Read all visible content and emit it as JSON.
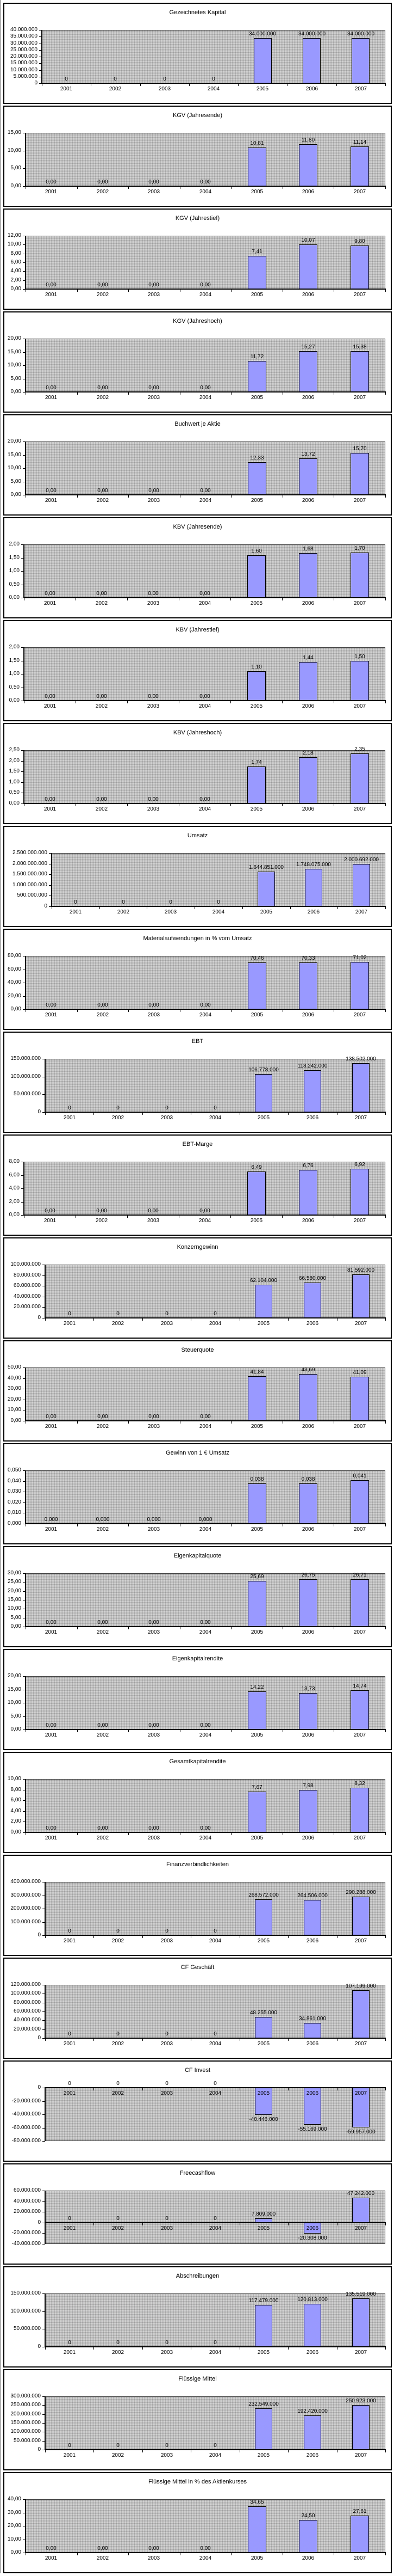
{
  "chart_defaults": {
    "categories": [
      "2001",
      "2002",
      "2003",
      "2004",
      "2005",
      "2006",
      "2007"
    ],
    "bar_color": "#9999ff",
    "bar_border_color": "#000000",
    "plot_background": "#cfcfcf",
    "box_border_color": "#000000",
    "legend": "none",
    "grid": "off"
  },
  "chart_data": [
    {
      "type": "bar",
      "title": "Gezeichnetes Kapital",
      "ymin": 0,
      "ymax": 40000000,
      "ytick_labels": [
        "0",
        "5.000.000",
        "10.000.000",
        "15.000.000",
        "20.000.000",
        "25.000.000",
        "30.000.000",
        "35.000.000",
        "40.000.000"
      ],
      "values": [
        0,
        0,
        0,
        0,
        34000000,
        34000000,
        34000000
      ],
      "value_labels": [
        "0",
        "0",
        "0",
        "0",
        "34.000.000",
        "34.000.000",
        "34.000.000"
      ]
    },
    {
      "type": "bar",
      "title": "KGV (Jahresende)",
      "ymin": 0,
      "ymax": 15,
      "ytick_labels": [
        "0,00",
        "5,00",
        "10,00",
        "15,00"
      ],
      "values": [
        0,
        0,
        0,
        0,
        10.81,
        11.8,
        11.14
      ],
      "value_labels": [
        "0,00",
        "0,00",
        "0,00",
        "0,00",
        "10,81",
        "11,80",
        "11,14"
      ]
    },
    {
      "type": "bar",
      "title": "KGV (Jahrestief)",
      "ymin": 0,
      "ymax": 12,
      "ytick_labels": [
        "0,00",
        "2,00",
        "4,00",
        "6,00",
        "8,00",
        "10,00",
        "12,00"
      ],
      "values": [
        0,
        0,
        0,
        0,
        7.41,
        10.07,
        9.8
      ],
      "value_labels": [
        "0,00",
        "0,00",
        "0,00",
        "0,00",
        "7,41",
        "10,07",
        "9,80"
      ]
    },
    {
      "type": "bar",
      "title": "KGV (Jahreshoch)",
      "ymin": 0,
      "ymax": 20,
      "ytick_labels": [
        "0,00",
        "5,00",
        "10,00",
        "15,00",
        "20,00"
      ],
      "values": [
        0,
        0,
        0,
        0,
        11.72,
        15.27,
        15.38
      ],
      "value_labels": [
        "0,00",
        "0,00",
        "0,00",
        "0,00",
        "11,72",
        "15,27",
        "15,38"
      ]
    },
    {
      "type": "bar",
      "title": "Buchwert je Aktie",
      "ymin": 0,
      "ymax": 20,
      "ytick_labels": [
        "0,00",
        "5,00",
        "10,00",
        "15,00",
        "20,00"
      ],
      "values": [
        0,
        0,
        0,
        0,
        12.33,
        13.72,
        15.7
      ],
      "value_labels": [
        "0,00",
        "0,00",
        "0,00",
        "0,00",
        "12,33",
        "13,72",
        "15,70"
      ]
    },
    {
      "type": "bar",
      "title": "KBV (Jahresende)",
      "ymin": 0,
      "ymax": 2,
      "ytick_labels": [
        "0,00",
        "0,50",
        "1,00",
        "1,50",
        "2,00"
      ],
      "values": [
        0,
        0,
        0,
        0,
        1.6,
        1.68,
        1.7
      ],
      "value_labels": [
        "0,00",
        "0,00",
        "0,00",
        "0,00",
        "1,60",
        "1,68",
        "1,70"
      ]
    },
    {
      "type": "bar",
      "title": "KBV (Jahrestief)",
      "ymin": 0,
      "ymax": 2,
      "ytick_labels": [
        "0,00",
        "0,50",
        "1,00",
        "1,50",
        "2,00"
      ],
      "values": [
        0,
        0,
        0,
        0,
        1.1,
        1.44,
        1.5
      ],
      "value_labels": [
        "0,00",
        "0,00",
        "0,00",
        "0,00",
        "1,10",
        "1,44",
        "1,50"
      ]
    },
    {
      "type": "bar",
      "title": "KBV (Jahreshoch)",
      "ymin": 0,
      "ymax": 2.5,
      "ytick_labels": [
        "0,00",
        "0,50",
        "1,00",
        "1,50",
        "2,00",
        "2,50"
      ],
      "values": [
        0,
        0,
        0,
        0,
        1.74,
        2.18,
        2.35
      ],
      "value_labels": [
        "0,00",
        "0,00",
        "0,00",
        "0,00",
        "1,74",
        "2,18",
        "2,35"
      ]
    },
    {
      "type": "bar",
      "title": "Umsatz",
      "ymin": 0,
      "ymax": 2500000000,
      "ytick_labels": [
        "0",
        "500.000.000",
        "1.000.000.000",
        "1.500.000.000",
        "2.000.000.000",
        "2.500.000.000"
      ],
      "values": [
        0,
        0,
        0,
        0,
        1644851000,
        1748075000,
        2000692000
      ],
      "value_labels": [
        "0",
        "0",
        "0",
        "0",
        "1.644.851.000",
        "1.748.075.000",
        "2.000.692.000"
      ]
    },
    {
      "type": "bar",
      "title": "Materialaufwendungen in % vom Umsatz",
      "ymin": 0,
      "ymax": 80,
      "ytick_labels": [
        "0,00",
        "20,00",
        "40,00",
        "60,00",
        "80,00"
      ],
      "values": [
        0,
        0,
        0,
        0,
        70.46,
        70.33,
        71.02
      ],
      "value_labels": [
        "0,00",
        "0,00",
        "0,00",
        "0,00",
        "70,46",
        "70,33",
        "71,02"
      ]
    },
    {
      "type": "bar",
      "title": "EBT",
      "ymin": 0,
      "ymax": 150000000,
      "ytick_labels": [
        "0",
        "50.000.000",
        "100.000.000",
        "150.000.000"
      ],
      "values": [
        0,
        0,
        0,
        0,
        106778000,
        118242000,
        138502000
      ],
      "value_labels": [
        "0",
        "0",
        "0",
        "0",
        "106.778.000",
        "118.242.000",
        "138.502.000"
      ]
    },
    {
      "type": "bar",
      "title": "EBT-Marge",
      "ymin": 0,
      "ymax": 8,
      "ytick_labels": [
        "0,00",
        "2,00",
        "4,00",
        "6,00",
        "8,00"
      ],
      "values": [
        0,
        0,
        0,
        0,
        6.49,
        6.76,
        6.92
      ],
      "value_labels": [
        "0,00",
        "0,00",
        "0,00",
        "0,00",
        "6,49",
        "6,76",
        "6,92"
      ]
    },
    {
      "type": "bar",
      "title": "Konzerngewinn",
      "ymin": 0,
      "ymax": 100000000,
      "ytick_labels": [
        "0",
        "20.000.000",
        "40.000.000",
        "60.000.000",
        "80.000.000",
        "100.000.000"
      ],
      "values": [
        0,
        0,
        0,
        0,
        62104000,
        66580000,
        81592000
      ],
      "value_labels": [
        "0",
        "0",
        "0",
        "0",
        "62.104.000",
        "66.580.000",
        "81.592.000"
      ]
    },
    {
      "type": "bar",
      "title": "Steuerquote",
      "ymin": 0,
      "ymax": 50,
      "ytick_labels": [
        "0,00",
        "10,00",
        "20,00",
        "30,00",
        "40,00",
        "50,00"
      ],
      "values": [
        0,
        0,
        0,
        0,
        41.84,
        43.69,
        41.09
      ],
      "value_labels": [
        "0,00",
        "0,00",
        "0,00",
        "0,00",
        "41,84",
        "43,69",
        "41,09"
      ]
    },
    {
      "type": "bar",
      "title": "Gewinn von 1 € Umsatz",
      "ymin": 0,
      "ymax": 0.05,
      "ytick_labels": [
        "0,000",
        "0,010",
        "0,020",
        "0,030",
        "0,040",
        "0,050"
      ],
      "values": [
        0,
        0,
        0,
        0,
        0.038,
        0.038,
        0.041
      ],
      "value_labels": [
        "0,000",
        "0,000",
        "0,000",
        "0,000",
        "0,038",
        "0,038",
        "0,041"
      ]
    },
    {
      "type": "bar",
      "title": "Eigenkapitalquote",
      "ymin": 0,
      "ymax": 30,
      "ytick_labels": [
        "0,00",
        "5,00",
        "10,00",
        "15,00",
        "20,00",
        "25,00",
        "30,00"
      ],
      "values": [
        0,
        0,
        0,
        0,
        25.69,
        26.75,
        26.71
      ],
      "value_labels": [
        "0,00",
        "0,00",
        "0,00",
        "0,00",
        "25,69",
        "26,75",
        "26,71"
      ]
    },
    {
      "type": "bar",
      "title": "Eigenkapitalrendite",
      "ymin": 0,
      "ymax": 20,
      "ytick_labels": [
        "0,00",
        "5,00",
        "10,00",
        "15,00",
        "20,00"
      ],
      "values": [
        0,
        0,
        0,
        0,
        14.22,
        13.73,
        14.74
      ],
      "value_labels": [
        "0,00",
        "0,00",
        "0,00",
        "0,00",
        "14,22",
        "13,73",
        "14,74"
      ]
    },
    {
      "type": "bar",
      "title": "Gesamtkapitalrendite",
      "ymin": 0,
      "ymax": 10,
      "ytick_labels": [
        "0,00",
        "2,00",
        "4,00",
        "6,00",
        "8,00",
        "10,00"
      ],
      "values": [
        0,
        0,
        0,
        0,
        7.67,
        7.98,
        8.32
      ],
      "value_labels": [
        "0,00",
        "0,00",
        "0,00",
        "0,00",
        "7,67",
        "7,98",
        "8,32"
      ]
    },
    {
      "type": "bar",
      "title": "Finanzverbindlichkeiten",
      "ymin": 0,
      "ymax": 400000000,
      "ytick_labels": [
        "0",
        "100.000.000",
        "200.000.000",
        "300.000.000",
        "400.000.000"
      ],
      "values": [
        0,
        0,
        0,
        0,
        268572000,
        264506000,
        290288000
      ],
      "value_labels": [
        "0",
        "0",
        "0",
        "0",
        "268.572.000",
        "264.506.000",
        "290.288.000"
      ]
    },
    {
      "type": "bar",
      "title": "CF Geschäft",
      "ymin": 0,
      "ymax": 120000000,
      "ytick_labels": [
        "0",
        "20.000.000",
        "40.000.000",
        "60.000.000",
        "80.000.000",
        "100.000.000",
        "120.000.000"
      ],
      "values": [
        0,
        0,
        0,
        0,
        48255000,
        34861000,
        107199000
      ],
      "value_labels": [
        "0",
        "0",
        "0",
        "0",
        "48.255.000",
        "34.861.000",
        "107.199.000"
      ]
    },
    {
      "type": "bar",
      "title": "CF Invest",
      "ymin": -80000000,
      "ymax": 0,
      "ytick_labels": [
        "-80.000.000",
        "-60.000.000",
        "-40.000.000",
        "-20.000.000",
        "0"
      ],
      "values": [
        0,
        0,
        0,
        0,
        -40446000,
        -55169000,
        -59957000
      ],
      "value_labels": [
        "0",
        "0",
        "0",
        "0",
        "-40.446.000",
        "-55.169.000",
        "-59.957.000"
      ]
    },
    {
      "type": "bar",
      "title": "Freecashflow",
      "ymin": -40000000,
      "ymax": 60000000,
      "ytick_labels": [
        "-40.000.000",
        "-20.000.000",
        "0",
        "20.000.000",
        "40.000.000",
        "60.000.000"
      ],
      "values": [
        0,
        0,
        0,
        0,
        7809000,
        -20308000,
        47242000
      ],
      "value_labels": [
        "0",
        "0",
        "0",
        "0",
        "7.809.000",
        "-20.308.000",
        "47.242.000"
      ]
    },
    {
      "type": "bar",
      "title": "Abschreibungen",
      "ymin": 0,
      "ymax": 150000000,
      "ytick_labels": [
        "0",
        "50.000.000",
        "100.000.000",
        "150.000.000"
      ],
      "values": [
        0,
        0,
        0,
        0,
        117479000,
        120813000,
        135519000
      ],
      "value_labels": [
        "0",
        "0",
        "0",
        "0",
        "117.479.000",
        "120.813.000",
        "135.519.000"
      ]
    },
    {
      "type": "bar",
      "title": "Flüssige Mittel",
      "ymin": 0,
      "ymax": 300000000,
      "ytick_labels": [
        "0",
        "50.000.000",
        "100.000.000",
        "150.000.000",
        "200.000.000",
        "250.000.000",
        "300.000.000"
      ],
      "values": [
        0,
        0,
        0,
        0,
        232549000,
        192420000,
        250923000
      ],
      "value_labels": [
        "0",
        "0",
        "0",
        "0",
        "232.549.000",
        "192.420.000",
        "250.923.000"
      ]
    },
    {
      "type": "bar",
      "title": "Flüssige Mittel in % des Aktienkurses",
      "ymin": 0,
      "ymax": 40,
      "ytick_labels": [
        "0,00",
        "10,00",
        "20,00",
        "30,00",
        "40,00"
      ],
      "values": [
        0,
        0,
        0,
        0,
        34.65,
        24.5,
        27.61
      ],
      "value_labels": [
        "0,00",
        "0,00",
        "0,00",
        "0,00",
        "34,65",
        "24,50",
        "27,61"
      ]
    }
  ]
}
